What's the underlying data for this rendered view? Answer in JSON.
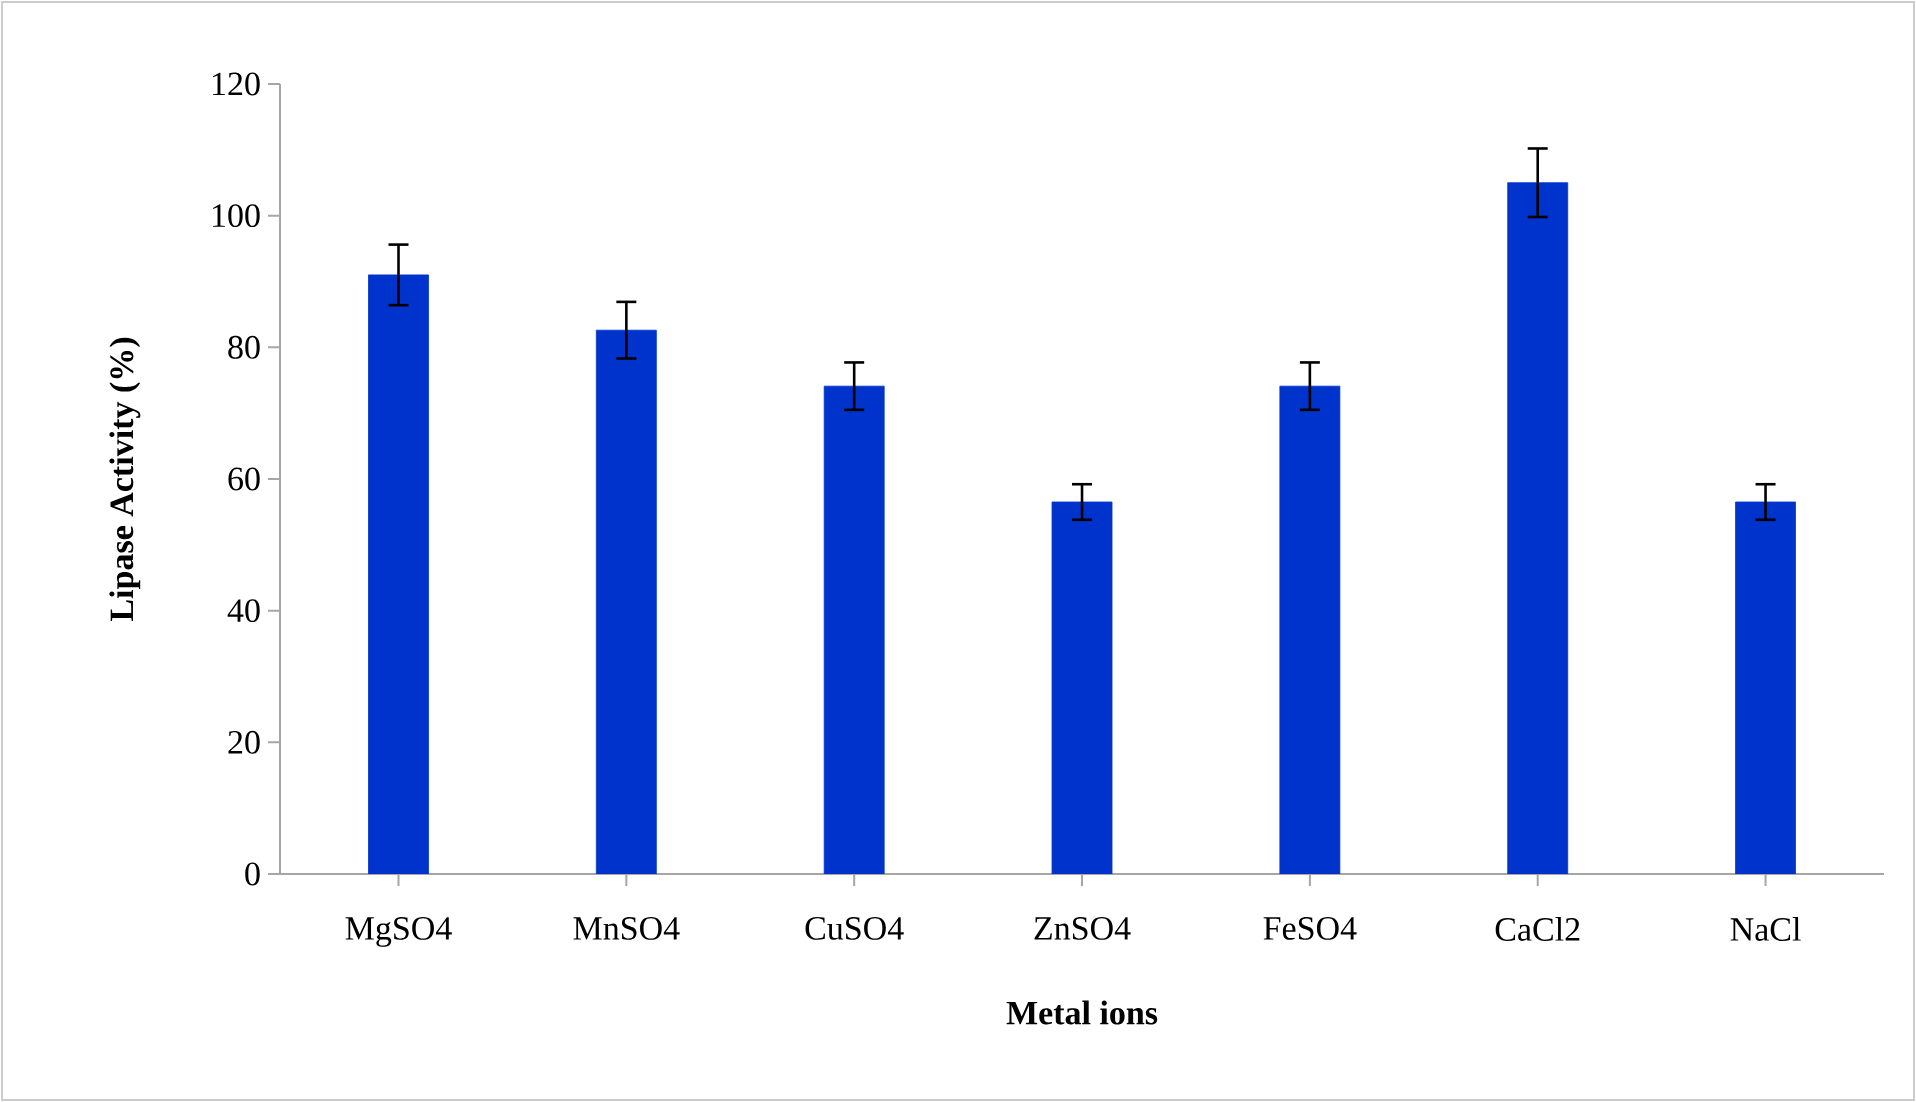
{
  "chart_data": {
    "type": "bar",
    "xlabel": "Metal ions",
    "ylabel": "Lipase Activity (%)",
    "categories": [
      "MgSO4",
      "MnSO4",
      "CuSO4",
      "ZnSO4",
      "FeSO4",
      "CaCl2",
      "NaCl"
    ],
    "values": [
      91.0,
      82.6,
      74.1,
      56.5,
      74.1,
      105.0,
      56.5
    ],
    "errors": [
      4.6,
      4.3,
      3.6,
      2.7,
      3.6,
      5.2,
      2.7
    ],
    "color": "#0033cc",
    "ylim": [
      0,
      120
    ],
    "yticks": [
      0,
      20,
      40,
      60,
      80,
      100,
      120
    ]
  }
}
